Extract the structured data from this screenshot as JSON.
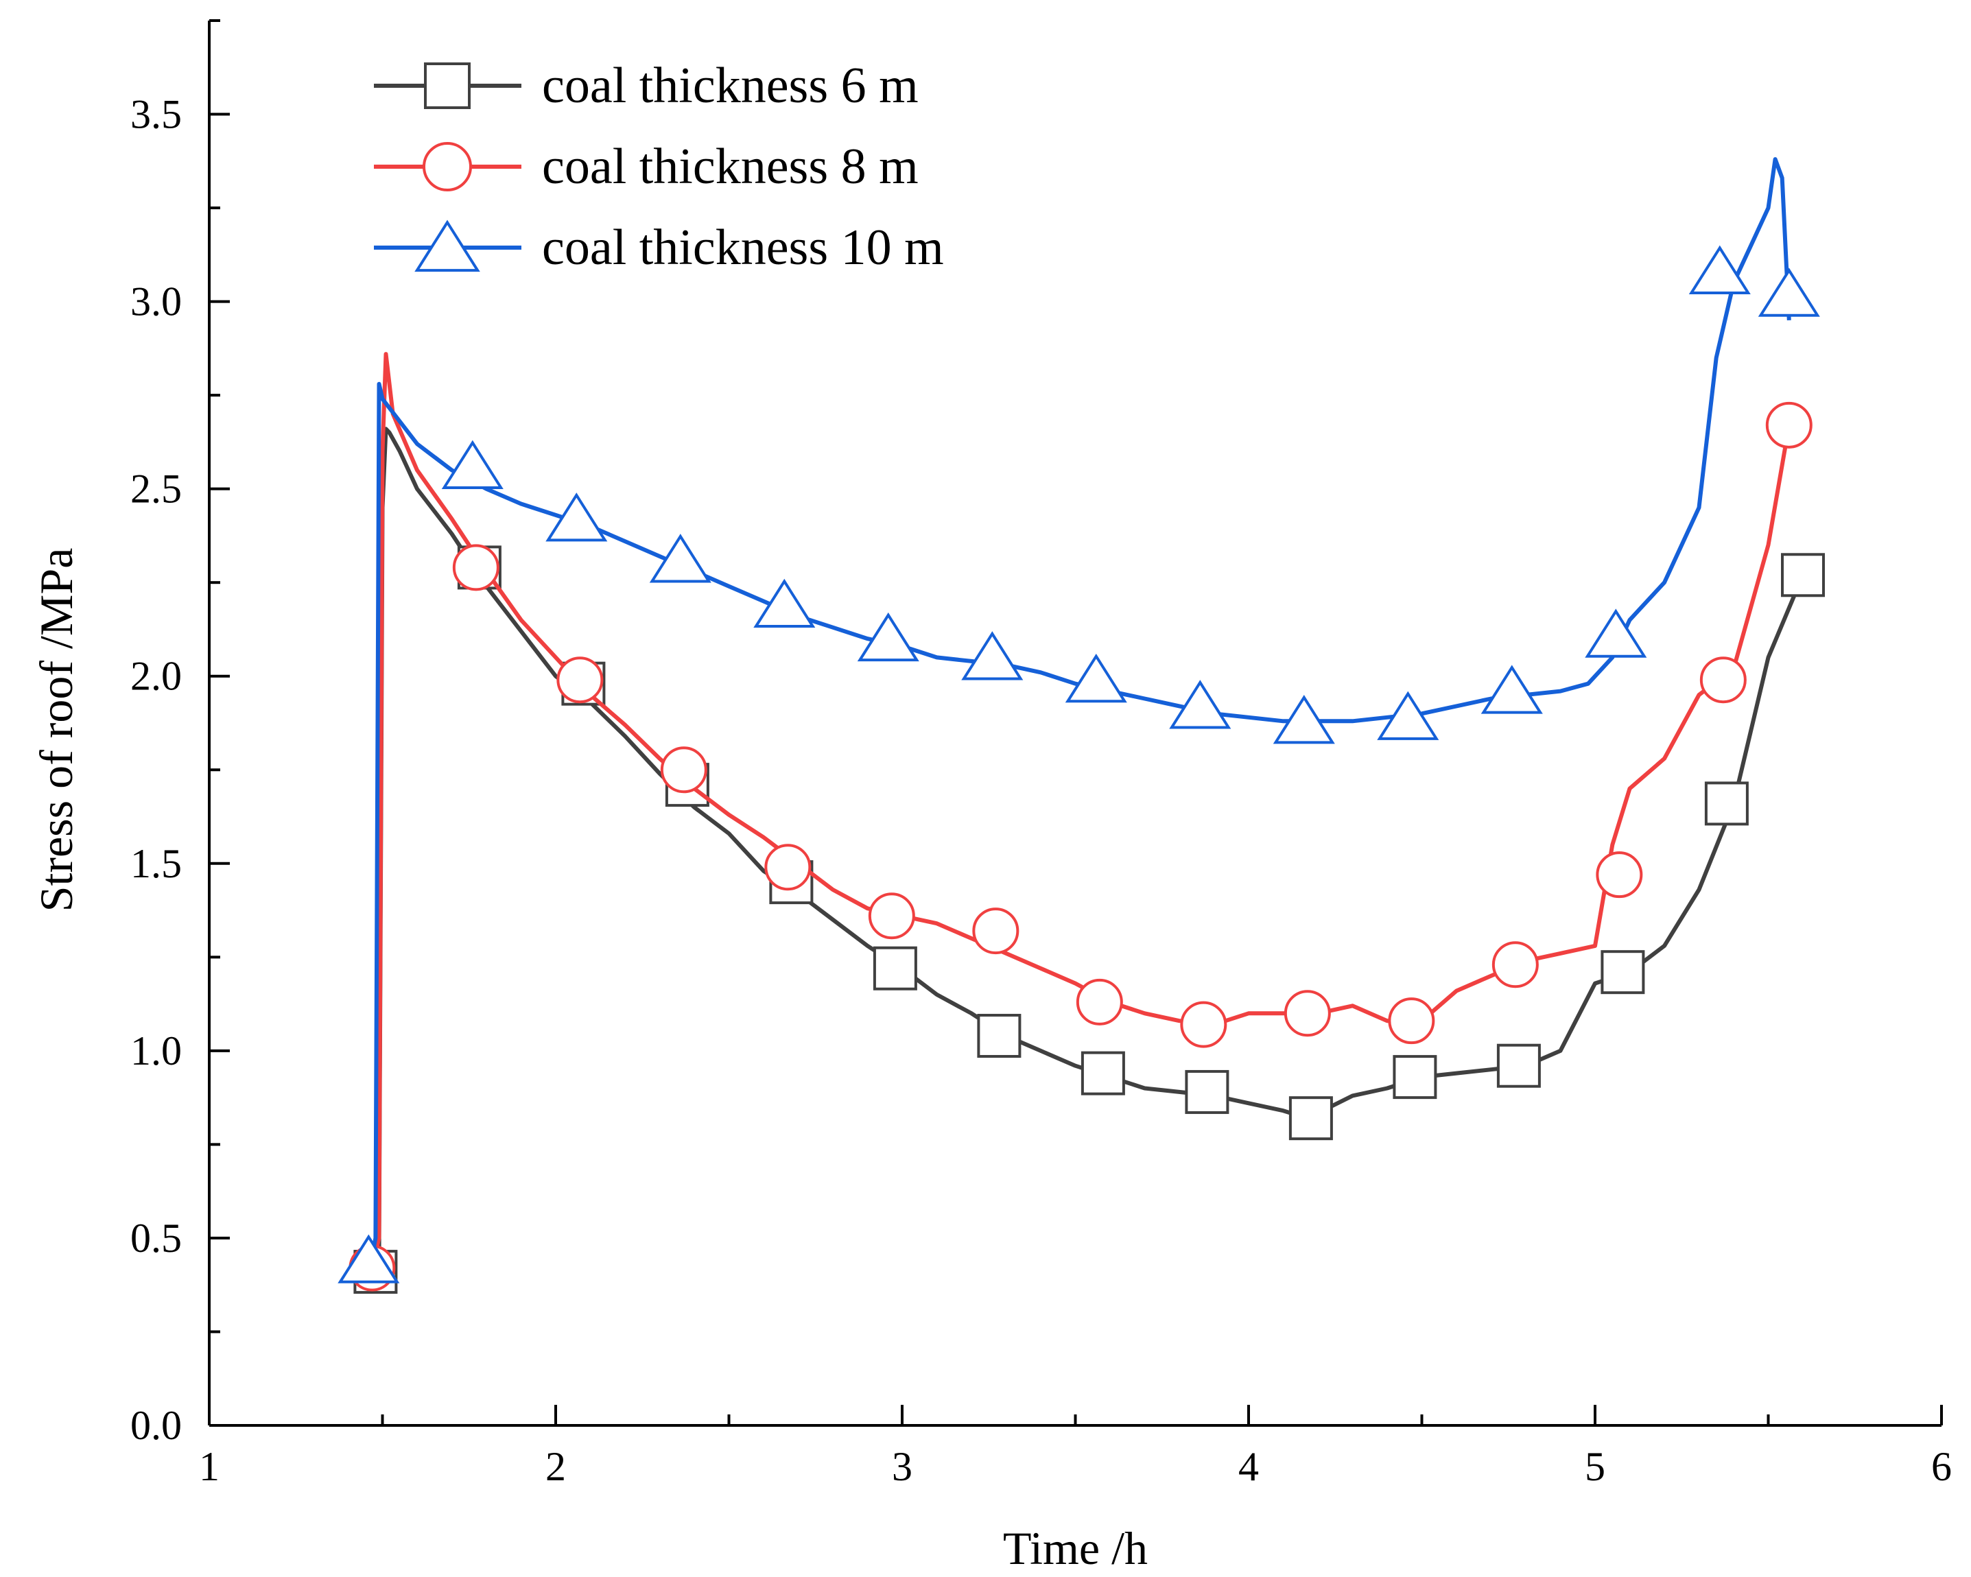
{
  "chart_data": {
    "type": "line",
    "title": "",
    "xlabel": "Time /h",
    "ylabel": "Stress  of  roof  /MPa",
    "xlim": [
      1,
      6
    ],
    "ylim": [
      0,
      3.75
    ],
    "xticks": [
      "1",
      "2",
      "3",
      "4",
      "5",
      "6"
    ],
    "yticks": [
      "0.0",
      "0.5",
      "1.0",
      "1.5",
      "2.0",
      "2.5",
      "3.0",
      "3.5"
    ],
    "legend_position": "top-left",
    "series": [
      {
        "name": "coal thickness 6 m",
        "color": "#404040",
        "marker": "square",
        "x": [
          1.48,
          1.49,
          1.5,
          1.51,
          1.52,
          1.55,
          1.6,
          1.7,
          1.8,
          1.9,
          2.0,
          2.1,
          2.2,
          2.3,
          2.4,
          2.5,
          2.6,
          2.7,
          2.8,
          2.9,
          3.0,
          3.1,
          3.2,
          3.3,
          3.4,
          3.5,
          3.6,
          3.7,
          3.8,
          3.9,
          4.0,
          4.1,
          4.17,
          4.3,
          4.4,
          4.5,
          4.6,
          4.7,
          4.8,
          4.9,
          5.0,
          5.1,
          5.2,
          5.3,
          5.4,
          5.5,
          5.6
        ],
        "y": [
          0.42,
          0.45,
          2.45,
          2.66,
          2.65,
          2.6,
          2.5,
          2.38,
          2.24,
          2.12,
          2.0,
          1.93,
          1.84,
          1.74,
          1.65,
          1.58,
          1.48,
          1.42,
          1.35,
          1.28,
          1.22,
          1.15,
          1.1,
          1.04,
          1.0,
          0.96,
          0.93,
          0.9,
          0.89,
          0.88,
          0.86,
          0.84,
          0.82,
          0.88,
          0.9,
          0.93,
          0.94,
          0.95,
          0.96,
          1.0,
          1.18,
          1.21,
          1.28,
          1.43,
          1.66,
          2.05,
          2.27
        ],
        "markers_x": [
          1.48,
          1.78,
          2.08,
          2.38,
          2.68,
          2.98,
          3.28,
          3.58,
          3.88,
          4.18,
          4.48,
          4.78,
          5.08,
          5.38,
          5.6
        ],
        "markers_y": [
          0.41,
          2.29,
          1.98,
          1.71,
          1.45,
          1.22,
          1.04,
          0.94,
          0.89,
          0.82,
          0.93,
          0.96,
          1.21,
          1.66,
          2.27
        ]
      },
      {
        "name": "coal thickness 8 m",
        "color": "#f04040",
        "marker": "circle",
        "x": [
          1.47,
          1.49,
          1.5,
          1.51,
          1.53,
          1.6,
          1.7,
          1.8,
          1.9,
          2.0,
          2.1,
          2.2,
          2.3,
          2.4,
          2.5,
          2.6,
          2.7,
          2.8,
          2.9,
          3.0,
          3.1,
          3.2,
          3.3,
          3.4,
          3.5,
          3.6,
          3.7,
          3.8,
          3.9,
          4.0,
          4.1,
          4.2,
          4.3,
          4.4,
          4.5,
          4.6,
          4.7,
          4.8,
          4.9,
          5.0,
          5.05,
          5.1,
          5.2,
          5.3,
          5.4,
          5.5,
          5.56
        ],
        "y": [
          0.42,
          0.5,
          2.6,
          2.86,
          2.7,
          2.55,
          2.42,
          2.28,
          2.15,
          2.05,
          1.95,
          1.87,
          1.78,
          1.7,
          1.63,
          1.57,
          1.5,
          1.43,
          1.38,
          1.36,
          1.34,
          1.3,
          1.26,
          1.22,
          1.18,
          1.13,
          1.1,
          1.08,
          1.07,
          1.1,
          1.1,
          1.1,
          1.12,
          1.08,
          1.08,
          1.16,
          1.2,
          1.24,
          1.26,
          1.28,
          1.55,
          1.7,
          1.78,
          1.95,
          2.02,
          2.35,
          2.67
        ],
        "markers_x": [
          1.47,
          1.77,
          2.07,
          2.37,
          2.67,
          2.97,
          3.27,
          3.57,
          3.87,
          4.17,
          4.47,
          4.77,
          5.07,
          5.37,
          5.56
        ],
        "markers_y": [
          0.42,
          2.29,
          1.99,
          1.75,
          1.49,
          1.36,
          1.32,
          1.13,
          1.07,
          1.1,
          1.08,
          1.23,
          1.47,
          1.99,
          2.67
        ]
      },
      {
        "name": "coal thickness 10 m",
        "color": "#1560d8",
        "marker": "triangle",
        "x": [
          1.45,
          1.47,
          1.48,
          1.49,
          1.5,
          1.55,
          1.6,
          1.7,
          1.8,
          1.9,
          2.0,
          2.1,
          2.2,
          2.3,
          2.4,
          2.5,
          2.6,
          2.7,
          2.8,
          2.9,
          3.0,
          3.1,
          3.2,
          3.3,
          3.4,
          3.5,
          3.6,
          3.7,
          3.8,
          3.9,
          4.0,
          4.1,
          4.2,
          4.3,
          4.4,
          4.5,
          4.6,
          4.7,
          4.8,
          4.9,
          4.98,
          5.05,
          5.1,
          5.2,
          5.3,
          5.35,
          5.4,
          5.45,
          5.5,
          5.52,
          5.54,
          5.56
        ],
        "y": [
          0.42,
          0.45,
          0.5,
          2.78,
          2.74,
          2.68,
          2.62,
          2.55,
          2.5,
          2.46,
          2.43,
          2.4,
          2.36,
          2.32,
          2.28,
          2.24,
          2.2,
          2.16,
          2.13,
          2.1,
          2.08,
          2.05,
          2.04,
          2.03,
          2.01,
          1.98,
          1.96,
          1.94,
          1.92,
          1.9,
          1.89,
          1.88,
          1.88,
          1.88,
          1.89,
          1.9,
          1.92,
          1.94,
          1.95,
          1.96,
          1.98,
          2.05,
          2.15,
          2.25,
          2.45,
          2.85,
          3.05,
          3.15,
          3.25,
          3.38,
          3.33,
          2.95
        ],
        "markers_x": [
          1.46,
          1.76,
          2.06,
          2.36,
          2.66,
          2.96,
          3.26,
          3.56,
          3.86,
          4.16,
          4.46,
          4.76,
          5.06,
          5.36,
          5.56
        ],
        "markers_y": [
          0.44,
          2.56,
          2.42,
          2.31,
          2.19,
          2.1,
          2.05,
          1.99,
          1.92,
          1.88,
          1.89,
          1.96,
          2.11,
          3.08,
          3.02
        ]
      }
    ]
  }
}
